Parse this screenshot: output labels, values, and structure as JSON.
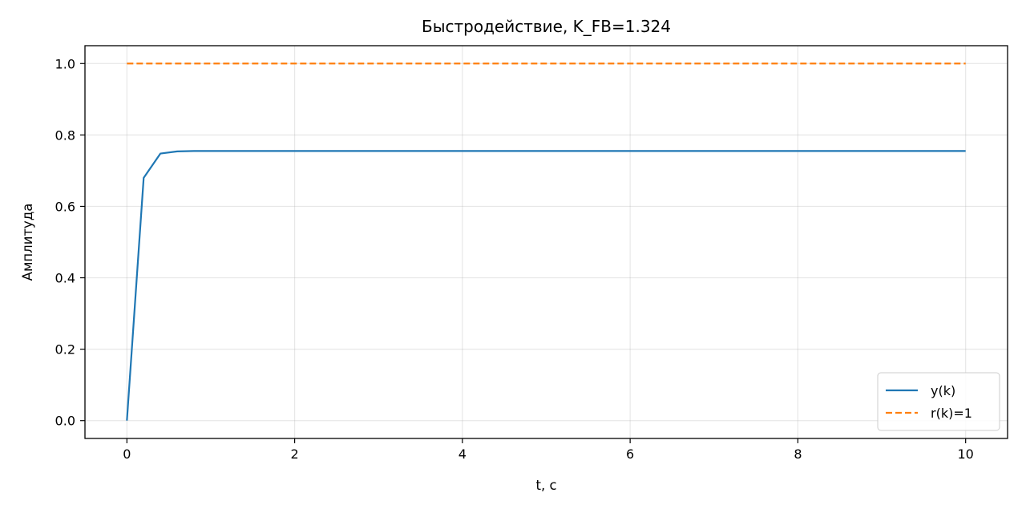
{
  "chart_data": {
    "type": "line",
    "title": "Быстродействие, K_FB=1.324",
    "xlabel": "t, c",
    "ylabel": "Амплитуда",
    "xlim": [
      -0.5,
      10.5
    ],
    "ylim": [
      -0.05,
      1.05
    ],
    "xticks": [
      0,
      2,
      4,
      6,
      8,
      10
    ],
    "xtick_labels": [
      "0",
      "2",
      "4",
      "6",
      "8",
      "10"
    ],
    "yticks": [
      0.0,
      0.2,
      0.4,
      0.6,
      0.8,
      1.0
    ],
    "ytick_labels": [
      "0.0",
      "0.2",
      "0.4",
      "0.6",
      "0.8",
      "1.0"
    ],
    "grid": true,
    "legend_position": "lower-right",
    "series": [
      {
        "name": "y(k)",
        "color": "#1f77b4",
        "style": "solid",
        "x": [
          0,
          0.2,
          0.4,
          0.6,
          0.8,
          1.0,
          2,
          4,
          6,
          8,
          10
        ],
        "y": [
          0.0,
          0.68,
          0.748,
          0.754,
          0.755,
          0.755,
          0.755,
          0.755,
          0.755,
          0.755,
          0.755
        ]
      },
      {
        "name": "r(k)=1",
        "color": "#ff7f0e",
        "style": "dashed",
        "x": [
          0,
          10
        ],
        "y": [
          1.0,
          1.0
        ]
      }
    ]
  }
}
